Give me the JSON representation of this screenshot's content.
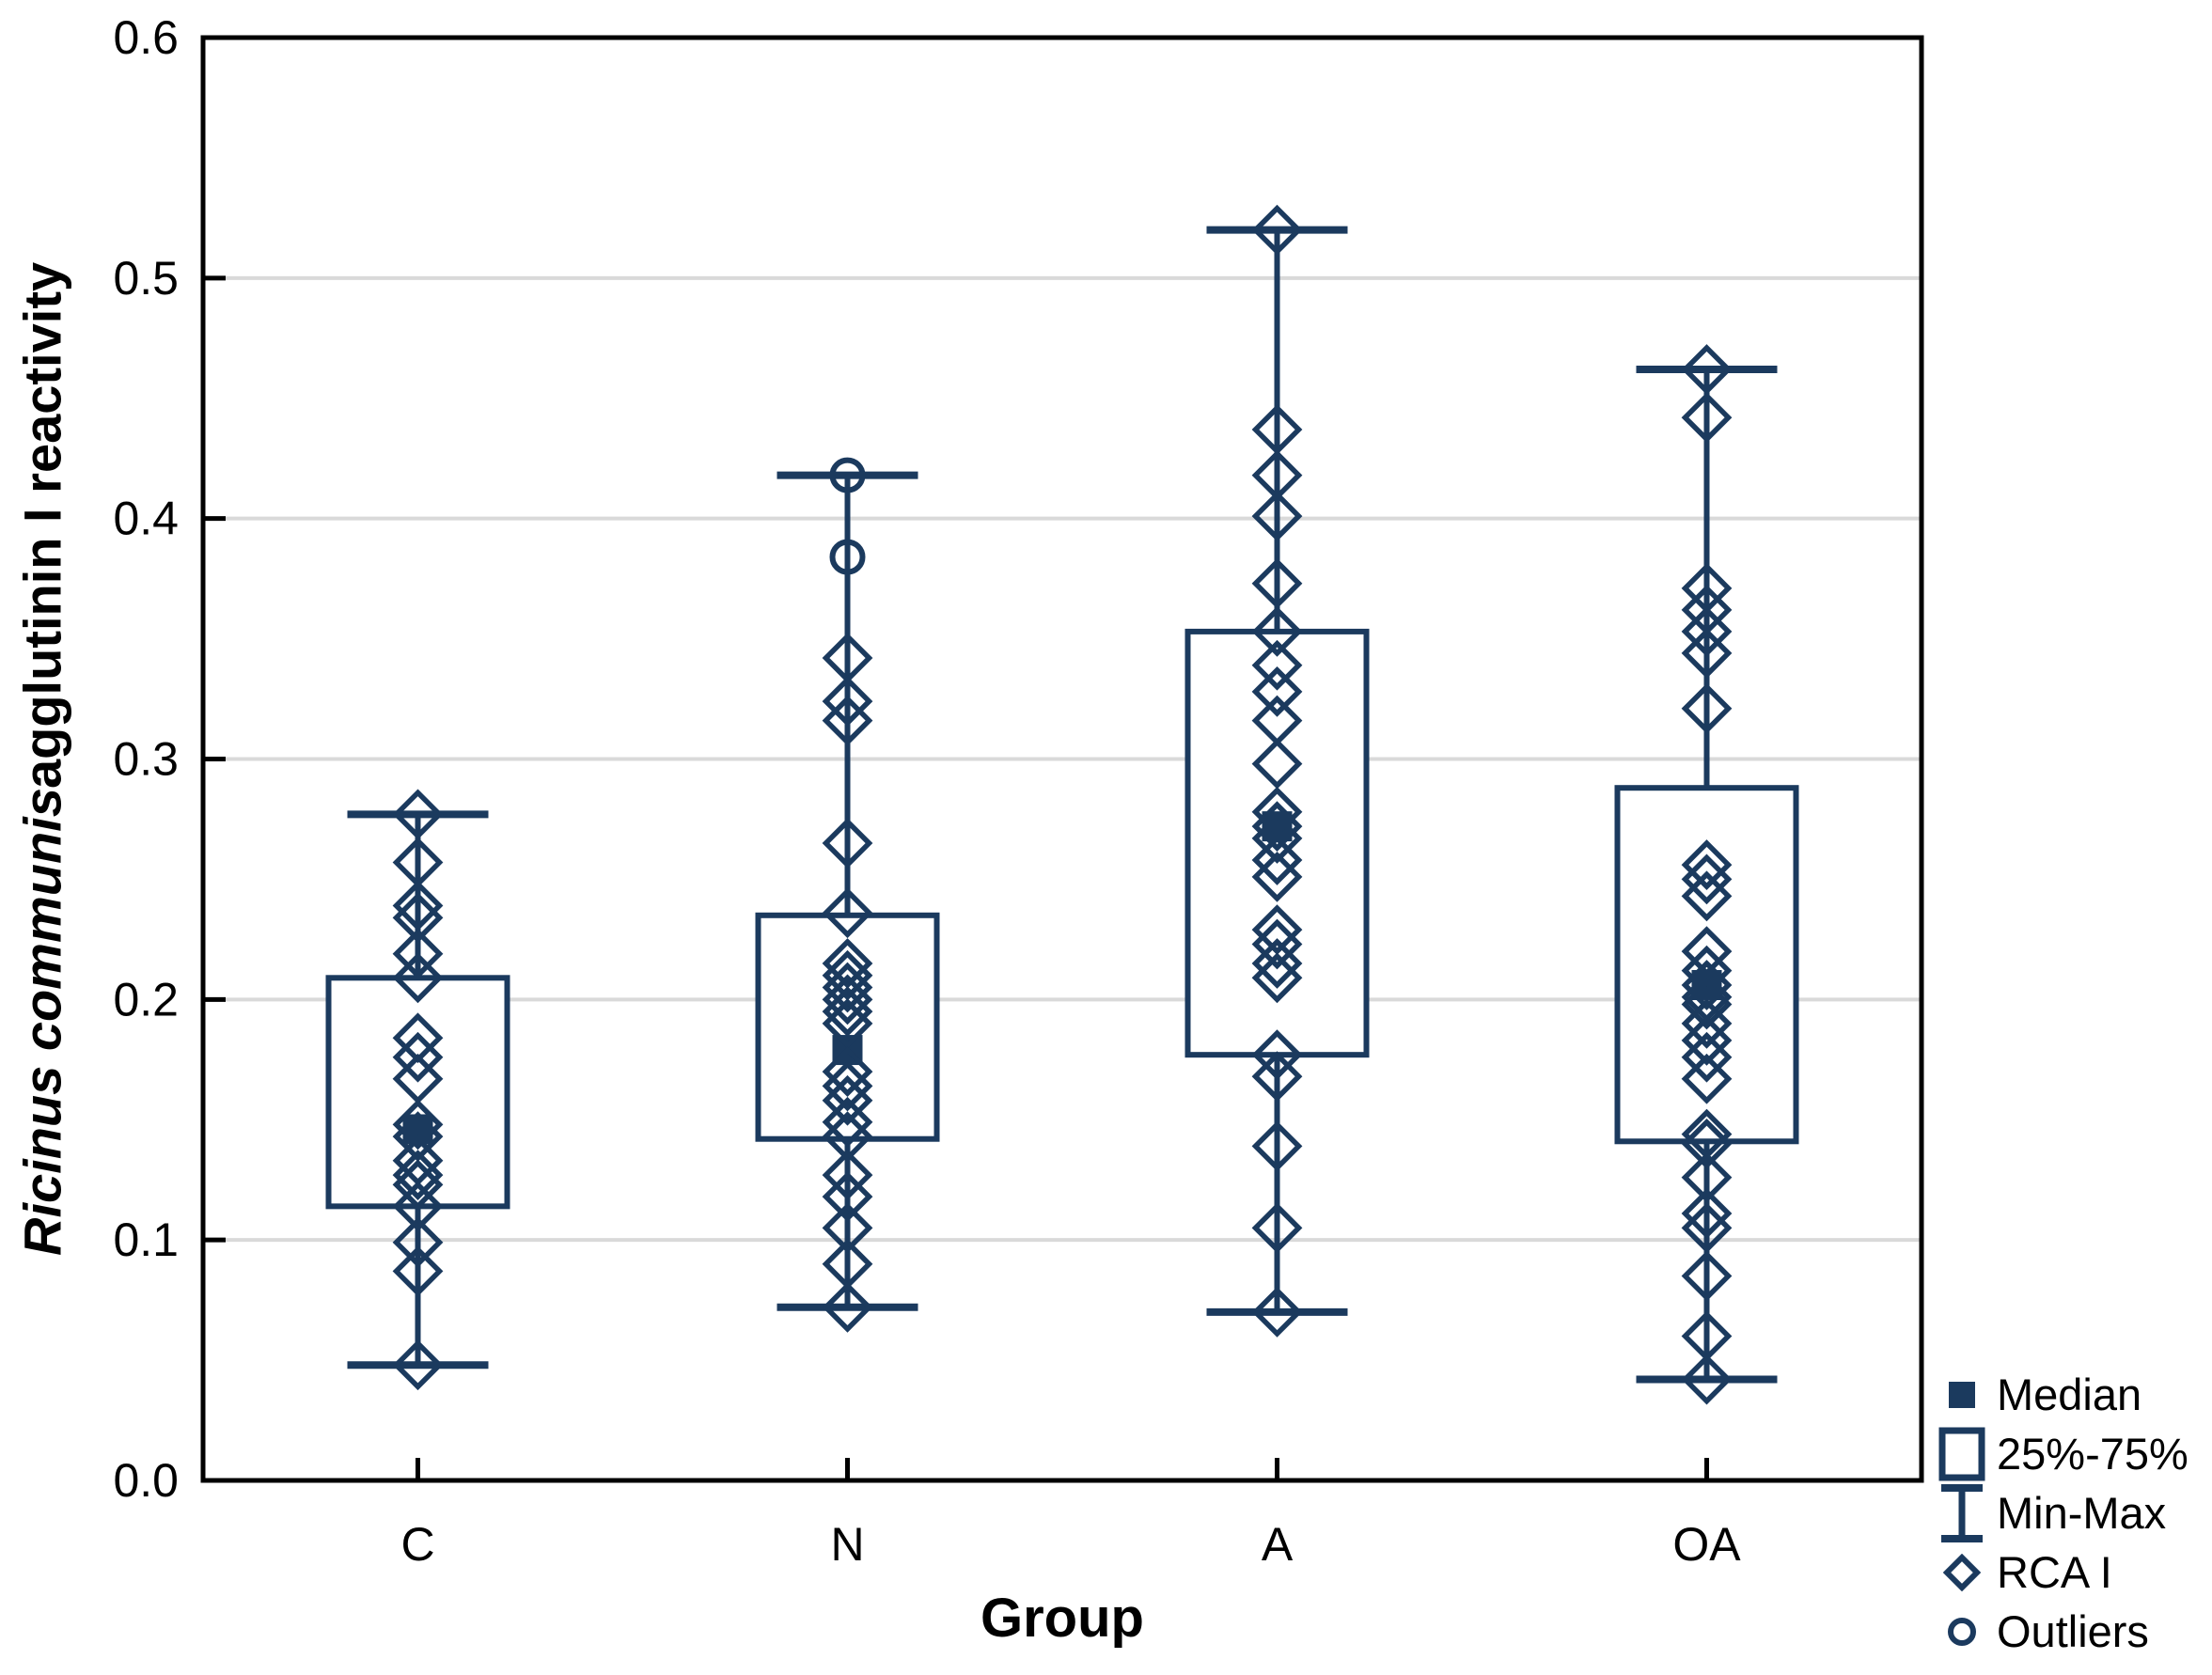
{
  "chart_data": {
    "type": "boxplot-scatter",
    "xlabel": "Group",
    "ylabel_italic": "Ricinus communis",
    "ylabel_rest": " agglutinin I reactivity",
    "ylim": [
      0.0,
      0.6
    ],
    "ytick_labels": [
      "0.0",
      "0.1",
      "0.2",
      "0.3",
      "0.4",
      "0.5",
      "0.6"
    ],
    "grid": true,
    "categories": [
      "C",
      "N",
      "A",
      "OA"
    ],
    "groups": [
      {
        "label": "C",
        "median": 0.146,
        "q1": 0.114,
        "q3": 0.209,
        "min": 0.048,
        "max": 0.277,
        "points": [
          0.277,
          0.257,
          0.239,
          0.234,
          0.219,
          0.209,
          0.184,
          0.176,
          0.167,
          0.148,
          0.143,
          0.133,
          0.127,
          0.123,
          0.114,
          0.099,
          0.087,
          0.048
        ],
        "outliers": []
      },
      {
        "label": "N",
        "median": 0.179,
        "q1": 0.142,
        "q3": 0.235,
        "min": 0.072,
        "max": 0.418,
        "points": [
          0.342,
          0.324,
          0.316,
          0.265,
          0.236,
          0.215,
          0.21,
          0.205,
          0.2,
          0.195,
          0.19,
          0.17,
          0.164,
          0.158,
          0.149,
          0.143,
          0.127,
          0.118,
          0.105,
          0.09,
          0.072
        ],
        "outliers": [
          0.418,
          0.384
        ]
      },
      {
        "label": "A",
        "median": 0.272,
        "q1": 0.177,
        "q3": 0.353,
        "min": 0.07,
        "max": 0.52,
        "points": [
          0.52,
          0.437,
          0.418,
          0.401,
          0.373,
          0.353,
          0.339,
          0.328,
          0.316,
          0.298,
          0.278,
          0.272,
          0.267,
          0.258,
          0.251,
          0.229,
          0.223,
          0.215,
          0.209,
          0.177,
          0.168,
          0.139,
          0.105,
          0.07
        ],
        "outliers": []
      },
      {
        "label": "OA",
        "median": 0.206,
        "q1": 0.141,
        "q3": 0.288,
        "min": 0.042,
        "max": 0.462,
        "points": [
          0.462,
          0.442,
          0.371,
          0.362,
          0.353,
          0.344,
          0.321,
          0.256,
          0.25,
          0.243,
          0.22,
          0.212,
          0.206,
          0.201,
          0.198,
          0.19,
          0.183,
          0.176,
          0.167,
          0.144,
          0.14,
          0.126,
          0.111,
          0.105,
          0.085,
          0.06,
          0.042
        ],
        "outliers": []
      }
    ],
    "legend": [
      {
        "label": "Median",
        "marker": "filled-square"
      },
      {
        "label": "25%-75%",
        "marker": "open-rect"
      },
      {
        "label": "Min-Max",
        "marker": "whisker"
      },
      {
        "label": "RCA I",
        "marker": "open-diamond"
      },
      {
        "label": "Outliers",
        "marker": "open-circle"
      }
    ],
    "colors": {
      "series": "#1B3A5E",
      "grid": "#D9D9D9",
      "frame": "#000000",
      "text": "#000000",
      "background": "#FFFFFF"
    }
  }
}
